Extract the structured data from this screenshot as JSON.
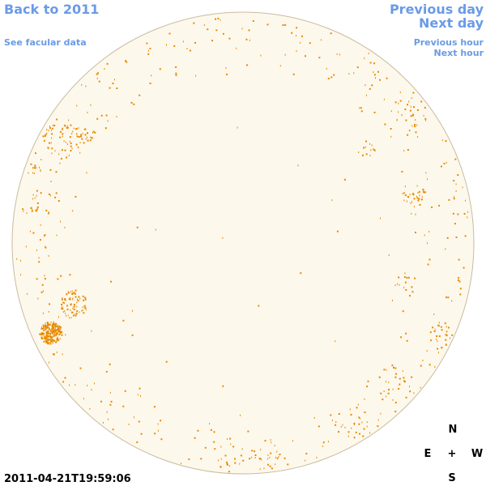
{
  "header": {
    "back_link": "Back to 2011",
    "facular_link": "See facular data"
  },
  "navigation": {
    "previous_day": "Previous day",
    "next_day": "Next day",
    "previous_hour": "Previous hour",
    "next_hour": "Next hour"
  },
  "compass": {
    "north": "N",
    "east": "E",
    "center": "+",
    "west": "W",
    "south": "S"
  },
  "timestamp": "2011-04-21T19:59:06"
}
